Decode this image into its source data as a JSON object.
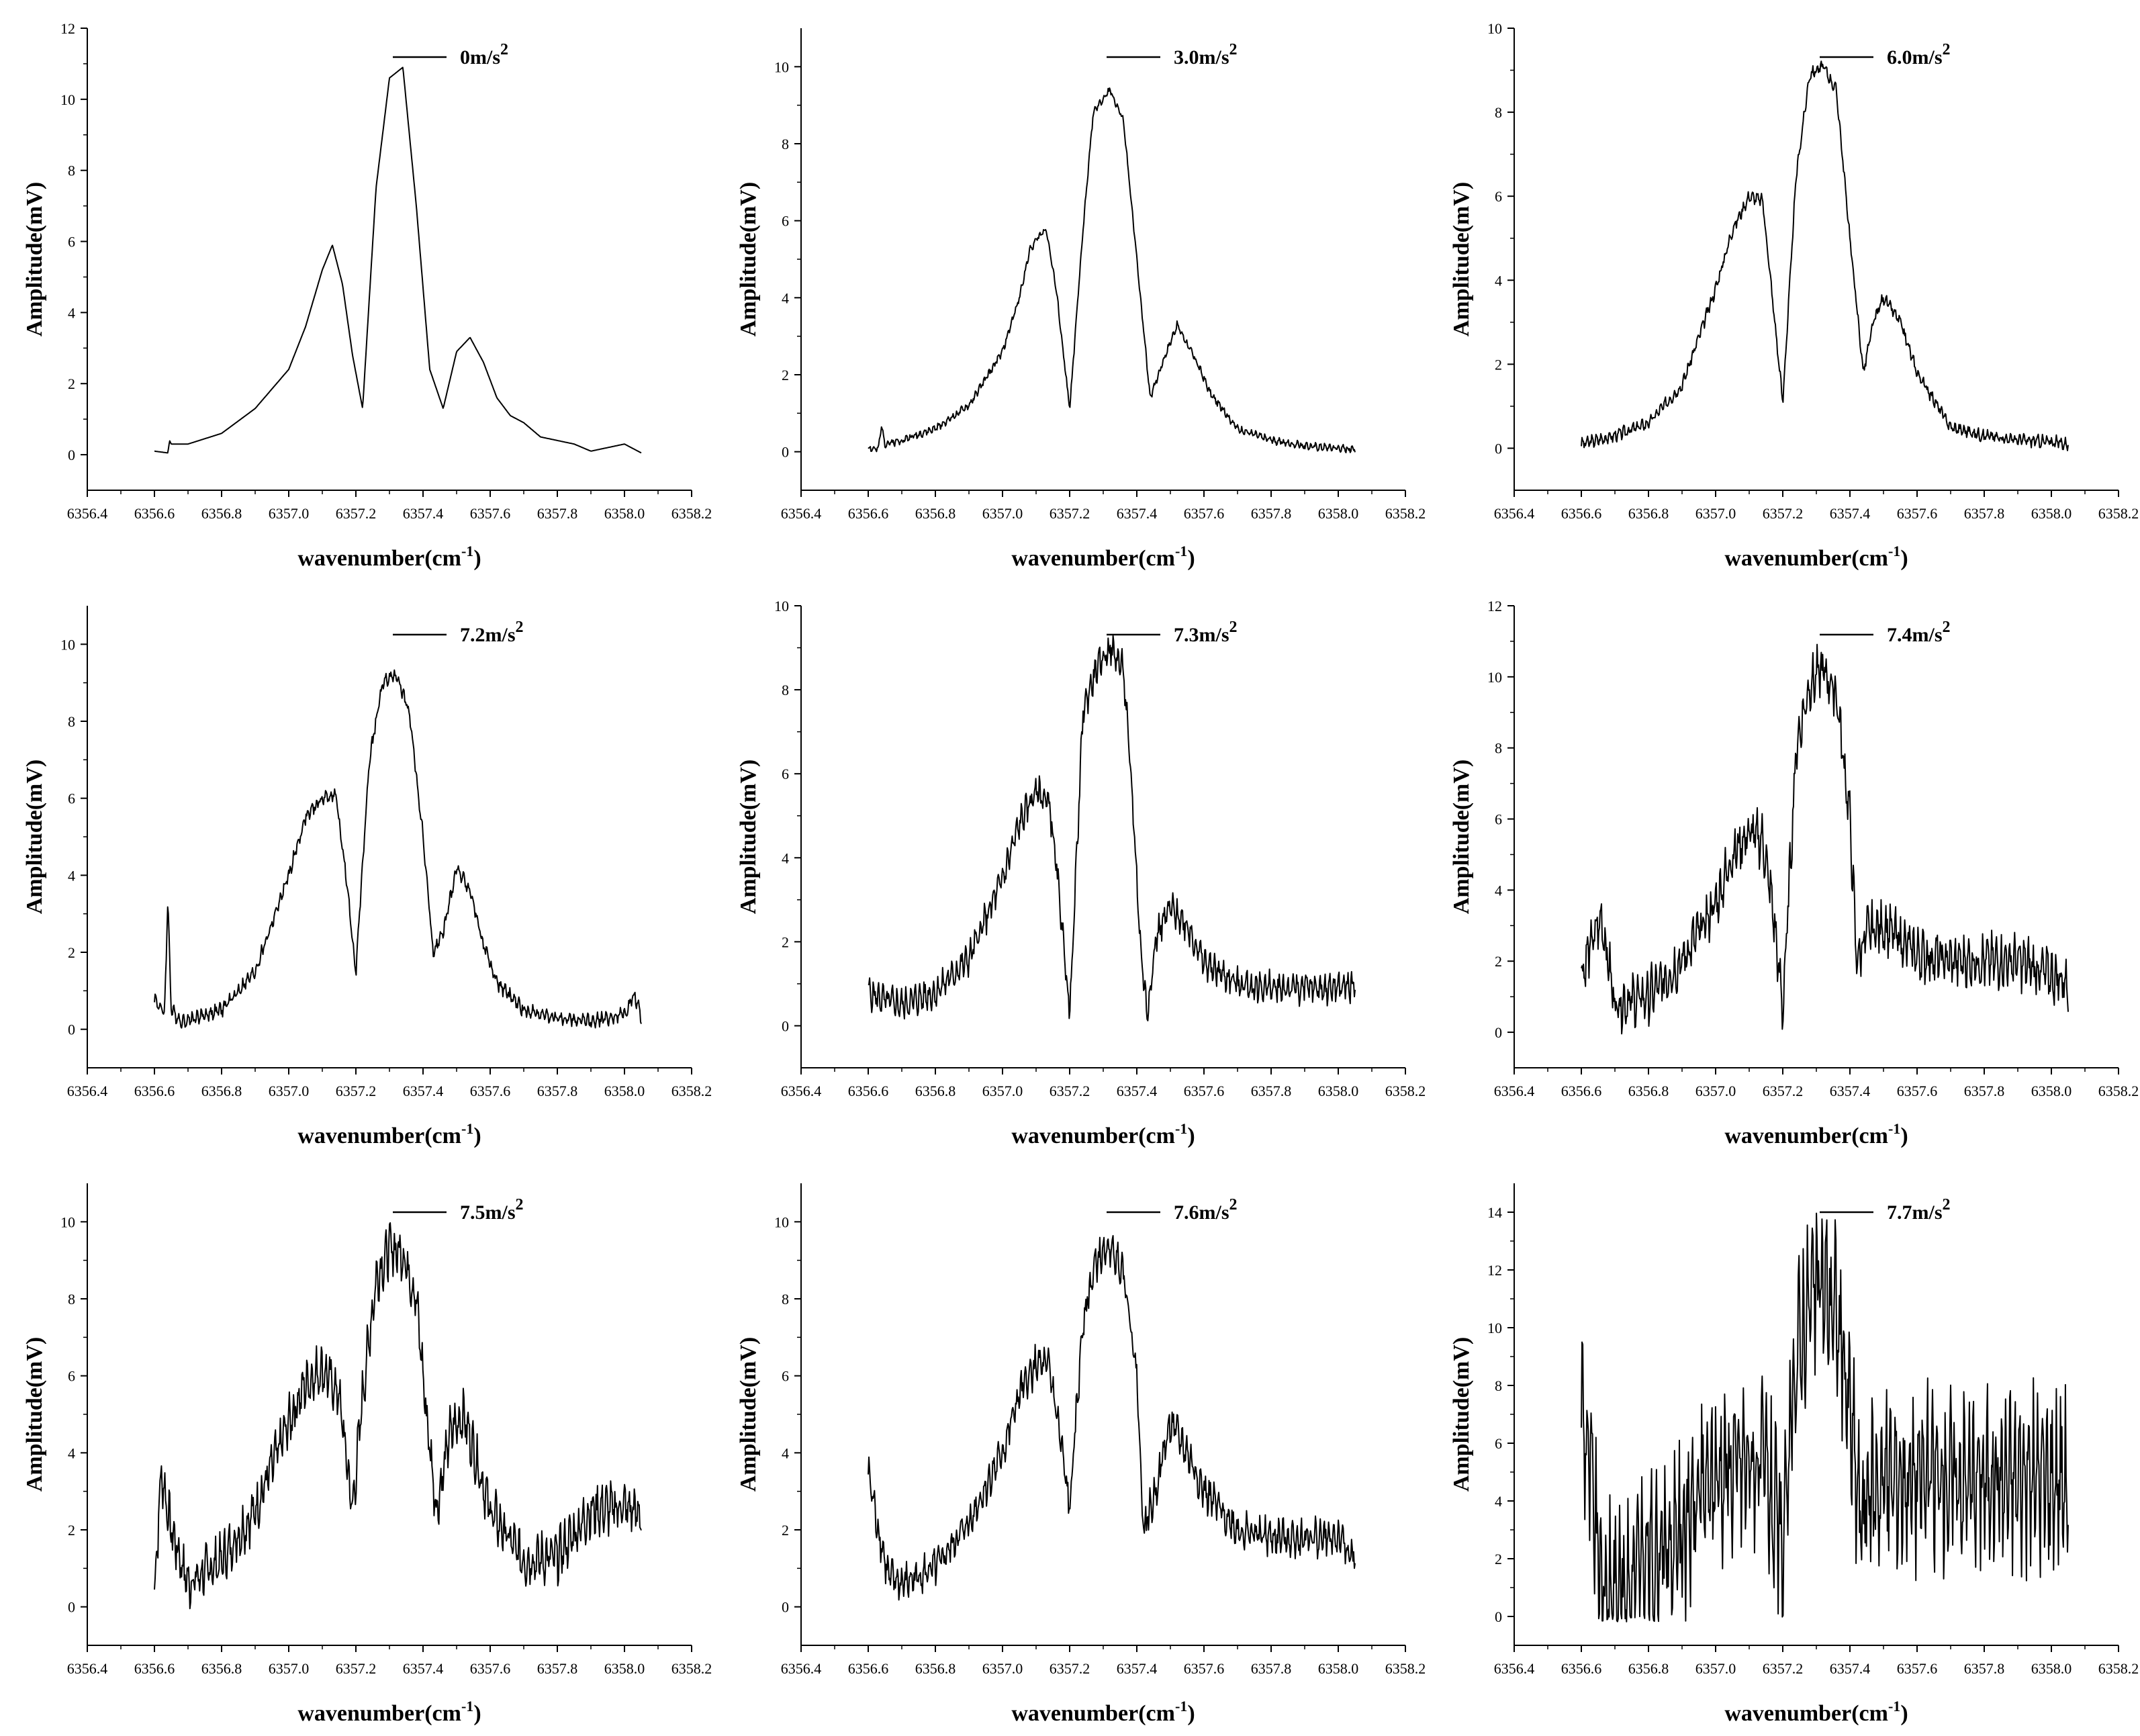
{
  "figure": {
    "xlabel": "wavenumber(cm",
    "xlabel_sup": "-1",
    "xlabel_end": ")",
    "ylabel": "Amplitude(mV)",
    "xticks": [
      "6356.4",
      "6356.6",
      "6356.8",
      "6357.0",
      "6357.2",
      "6357.4",
      "6357.6",
      "6357.8",
      "6358.0",
      "6358.2"
    ]
  },
  "chart_data": [
    {
      "type": "line",
      "title": "0m/s2",
      "legend": "0m/s",
      "legend_sup": "2",
      "xlim": [
        6356.4,
        6358.2
      ],
      "ylim": [
        -1,
        12
      ],
      "yticks": [
        0,
        2,
        4,
        6,
        8,
        10,
        12
      ],
      "ytick_labels": [
        "0",
        "2",
        "4",
        "6",
        "8",
        "10",
        "12"
      ],
      "x": [
        6356.6,
        6356.64,
        6356.645,
        6356.65,
        6356.7,
        6356.8,
        6356.9,
        6357.0,
        6357.05,
        6357.1,
        6357.13,
        6357.16,
        6357.19,
        6357.22,
        6357.26,
        6357.3,
        6357.34,
        6357.38,
        6357.42,
        6357.46,
        6357.5,
        6357.54,
        6357.58,
        6357.62,
        6357.66,
        6357.7,
        6357.75,
        6357.8,
        6357.85,
        6357.9,
        6357.95,
        6358.0,
        6358.05
      ],
      "y": [
        0.1,
        0.05,
        0.4,
        0.3,
        0.3,
        0.6,
        1.3,
        2.4,
        3.6,
        5.2,
        5.9,
        4.8,
        2.8,
        1.3,
        7.5,
        10.6,
        10.9,
        7.0,
        2.4,
        1.3,
        2.9,
        3.3,
        2.6,
        1.6,
        1.1,
        0.9,
        0.5,
        0.4,
        0.3,
        0.1,
        0.2,
        0.3,
        0.05
      ],
      "noise": 0.0,
      "seed": 1
    },
    {
      "type": "line",
      "title": "3.0m/s2",
      "legend": "3.0m/s",
      "legend_sup": "2",
      "xlim": [
        6356.4,
        6358.2
      ],
      "ylim": [
        -1,
        11
      ],
      "yticks": [
        0,
        2,
        4,
        6,
        8,
        10
      ],
      "ytick_labels": [
        "0",
        "2",
        "4",
        "6",
        "8",
        "10"
      ],
      "x": [
        6356.6,
        6356.63,
        6356.64,
        6356.65,
        6356.7,
        6356.8,
        6356.9,
        6357.0,
        6357.05,
        6357.08,
        6357.1,
        6357.13,
        6357.16,
        6357.2,
        6357.24,
        6357.27,
        6357.32,
        6357.36,
        6357.4,
        6357.44,
        6357.48,
        6357.52,
        6357.55,
        6357.58,
        6357.62,
        6357.7,
        6357.8,
        6357.9,
        6358.0,
        6358.05
      ],
      "y": [
        0.1,
        0.05,
        0.7,
        0.2,
        0.3,
        0.6,
        1.2,
        2.6,
        4.0,
        5.2,
        5.5,
        5.8,
        4.2,
        1.1,
        5.8,
        8.8,
        9.4,
        8.6,
        5.0,
        1.4,
        2.4,
        3.3,
        2.8,
        2.3,
        1.5,
        0.6,
        0.3,
        0.15,
        0.1,
        0.05
      ],
      "noise": 0.12,
      "seed": 2
    },
    {
      "type": "line",
      "title": "6.0m/s2",
      "legend": "6.0m/s",
      "legend_sup": "2",
      "xlim": [
        6356.4,
        6358.2
      ],
      "ylim": [
        -1,
        10
      ],
      "yticks": [
        0,
        2,
        4,
        6,
        8,
        10
      ],
      "ytick_labels": [
        "0",
        "2",
        "4",
        "6",
        "8",
        "10"
      ],
      "x": [
        6356.6,
        6356.7,
        6356.8,
        6356.9,
        6357.0,
        6357.05,
        6357.1,
        6357.14,
        6357.17,
        6357.2,
        6357.24,
        6357.28,
        6357.32,
        6357.36,
        6357.4,
        6357.44,
        6357.47,
        6357.5,
        6357.55,
        6357.6,
        6357.7,
        6357.8,
        6357.9,
        6358.0,
        6358.05
      ],
      "y": [
        0.1,
        0.3,
        0.6,
        1.5,
        3.8,
        5.2,
        6.0,
        5.9,
        3.5,
        1.1,
        6.5,
        8.9,
        9.1,
        8.5,
        5.0,
        1.8,
        3.0,
        3.6,
        3.0,
        1.8,
        0.5,
        0.3,
        0.2,
        0.15,
        0.1
      ],
      "noise": 0.18,
      "seed": 3
    },
    {
      "type": "line",
      "title": "7.2m/s2",
      "legend": "7.2m/s",
      "legend_sup": "2",
      "xlim": [
        6356.4,
        6358.2
      ],
      "ylim": [
        -1,
        11
      ],
      "yticks": [
        0,
        2,
        4,
        6,
        8,
        10
      ],
      "ytick_labels": [
        "0",
        "2",
        "4",
        "6",
        "8",
        "10"
      ],
      "x": [
        6356.6,
        6356.63,
        6356.64,
        6356.65,
        6356.68,
        6356.8,
        6356.9,
        6357.0,
        6357.05,
        6357.1,
        6357.14,
        6357.17,
        6357.2,
        6357.24,
        6357.28,
        6357.32,
        6357.36,
        6357.4,
        6357.43,
        6357.46,
        6357.5,
        6357.54,
        6357.58,
        6357.62,
        6357.7,
        6357.8,
        6357.9,
        6358.0,
        6358.03,
        6358.05
      ],
      "y": [
        0.8,
        0.4,
        3.4,
        0.5,
        0.2,
        0.5,
        1.5,
        4.0,
        5.5,
        6.0,
        6.1,
        4.0,
        1.5,
        7.0,
        9.0,
        9.2,
        8.2,
        5.0,
        2.0,
        2.5,
        4.2,
        3.6,
        2.2,
        1.2,
        0.5,
        0.3,
        0.2,
        0.4,
        0.9,
        0.3
      ],
      "noise": 0.22,
      "seed": 4
    },
    {
      "type": "line",
      "title": "7.3m/s2",
      "legend": "7.3m/s",
      "legend_sup": "2",
      "xlim": [
        6356.4,
        6358.2
      ],
      "ylim": [
        -1,
        10
      ],
      "yticks": [
        0,
        2,
        4,
        6,
        8,
        10
      ],
      "ytick_labels": [
        "0",
        "2",
        "4",
        "6",
        "8",
        "10"
      ],
      "x": [
        6356.6,
        6356.65,
        6356.7,
        6356.8,
        6356.9,
        6357.0,
        6357.05,
        6357.1,
        6357.14,
        6357.17,
        6357.2,
        6357.24,
        6357.28,
        6357.32,
        6357.36,
        6357.39,
        6357.41,
        6357.43,
        6357.46,
        6357.5,
        6357.55,
        6357.6,
        6357.7,
        6357.8,
        6357.9,
        6358.0,
        6358.05
      ],
      "y": [
        0.8,
        0.6,
        0.5,
        0.8,
        1.6,
        3.5,
        4.8,
        5.6,
        5.3,
        3.0,
        0.3,
        7.5,
        8.5,
        9.0,
        8.5,
        5.0,
        2.0,
        0.3,
        2.2,
        2.8,
        2.4,
        1.5,
        1.0,
        0.9,
        0.9,
        0.9,
        1.0
      ],
      "noise": 0.45,
      "seed": 5
    },
    {
      "type": "line",
      "title": "7.4m/s2",
      "legend": "7.4m/s",
      "legend_sup": "2",
      "xlim": [
        6356.4,
        6358.2
      ],
      "ylim": [
        -1,
        12
      ],
      "yticks": [
        0,
        2,
        4,
        6,
        8,
        10,
        12
      ],
      "ytick_labels": [
        "0",
        "2",
        "4",
        "6",
        "8",
        "10",
        "12"
      ],
      "x": [
        6356.6,
        6356.63,
        6356.66,
        6356.7,
        6356.8,
        6356.9,
        6357.0,
        6357.05,
        6357.1,
        6357.14,
        6357.17,
        6357.2,
        6357.24,
        6357.28,
        6357.32,
        6357.36,
        6357.4,
        6357.42,
        6357.45,
        6357.5,
        6357.55,
        6357.6,
        6357.7,
        6357.8,
        6357.9,
        6358.0,
        6358.05
      ],
      "y": [
        1.6,
        2.5,
        3.2,
        0.8,
        1.0,
        2.0,
        3.6,
        5.0,
        5.6,
        5.4,
        3.5,
        0.6,
        8.0,
        9.8,
        10.2,
        9.5,
        6.0,
        2.0,
        2.8,
        3.0,
        2.6,
        2.2,
        2.0,
        2.0,
        2.0,
        1.6,
        1.4
      ],
      "noise": 0.9,
      "seed": 6
    },
    {
      "type": "line",
      "title": "7.5m/s2",
      "legend": "7.5m/s",
      "legend_sup": "2",
      "xlim": [
        6356.4,
        6358.2
      ],
      "ylim": [
        -1,
        11
      ],
      "yticks": [
        0,
        2,
        4,
        6,
        8,
        10
      ],
      "ytick_labels": [
        "0",
        "2",
        "4",
        "6",
        "8",
        "10"
      ],
      "x": [
        6356.6,
        6356.62,
        6356.65,
        6356.7,
        6356.8,
        6356.9,
        6357.0,
        6357.05,
        6357.1,
        6357.15,
        6357.19,
        6357.22,
        6357.26,
        6357.3,
        6357.34,
        6357.38,
        6357.41,
        6357.44,
        6357.48,
        6357.52,
        6357.56,
        6357.6,
        6357.7,
        6357.8,
        6357.9,
        6358.0,
        6358.05
      ],
      "y": [
        0.4,
        3.5,
        2.0,
        0.6,
        1.2,
        2.5,
        4.8,
        5.8,
        6.2,
        5.5,
        2.5,
        5.5,
        8.5,
        9.3,
        9.2,
        8.0,
        5.0,
        2.5,
        4.5,
        5.0,
        3.8,
        2.5,
        1.2,
        1.3,
        2.5,
        2.6,
        2.4
      ],
      "noise": 0.8,
      "seed": 7
    },
    {
      "type": "line",
      "title": "7.6m/s2",
      "legend": "7.6m/s",
      "legend_sup": "2",
      "xlim": [
        6356.4,
        6358.2
      ],
      "ylim": [
        -1,
        11
      ],
      "yticks": [
        0,
        2,
        4,
        6,
        8,
        10
      ],
      "ytick_labels": [
        "0",
        "2",
        "4",
        "6",
        "8",
        "10"
      ],
      "x": [
        6356.6,
        6356.63,
        6356.66,
        6356.7,
        6356.8,
        6356.9,
        6357.0,
        6357.05,
        6357.1,
        6357.14,
        6357.17,
        6357.2,
        6357.24,
        6357.28,
        6357.32,
        6357.36,
        6357.4,
        6357.42,
        6357.45,
        6357.5,
        6357.55,
        6357.6,
        6357.7,
        6357.8,
        6357.9,
        6358.0,
        6358.05
      ],
      "y": [
        3.5,
        2.0,
        0.8,
        0.6,
        1.0,
        2.2,
        4.0,
        5.5,
        6.3,
        6.2,
        4.5,
        2.5,
        7.5,
        9.0,
        9.3,
        8.8,
        6.0,
        2.0,
        2.8,
        4.8,
        4.0,
        3.0,
        2.0,
        1.8,
        1.8,
        1.8,
        1.2
      ],
      "noise": 0.6,
      "seed": 8
    },
    {
      "type": "line",
      "title": "7.7m/s2",
      "legend": "7.7m/s",
      "legend_sup": "2",
      "xlim": [
        6356.4,
        6358.2
      ],
      "ylim": [
        -1,
        15
      ],
      "yticks": [
        0,
        2,
        4,
        6,
        8,
        10,
        12,
        14
      ],
      "ytick_labels": [
        "0",
        "2",
        "4",
        "6",
        "8",
        "10",
        "12",
        "14"
      ],
      "x": [
        6356.6,
        6356.63,
        6356.66,
        6356.7,
        6356.8,
        6356.9,
        6357.0,
        6357.05,
        6357.1,
        6357.15,
        6357.2,
        6357.24,
        6357.28,
        6357.32,
        6357.36,
        6357.4,
        6357.43,
        6357.47,
        6357.5,
        6357.6,
        6357.7,
        6357.8,
        6357.9,
        6358.0,
        6358.05
      ],
      "y": [
        7.5,
        4.5,
        0.8,
        1.0,
        1.8,
        3.0,
        5.0,
        5.2,
        5.4,
        5.0,
        2.0,
        9.0,
        11.0,
        11.5,
        10.5,
        7.0,
        3.5,
        4.5,
        4.8,
        4.8,
        4.8,
        4.8,
        4.8,
        4.8,
        4.8
      ],
      "noise": 3.6,
      "seed": 9
    }
  ]
}
